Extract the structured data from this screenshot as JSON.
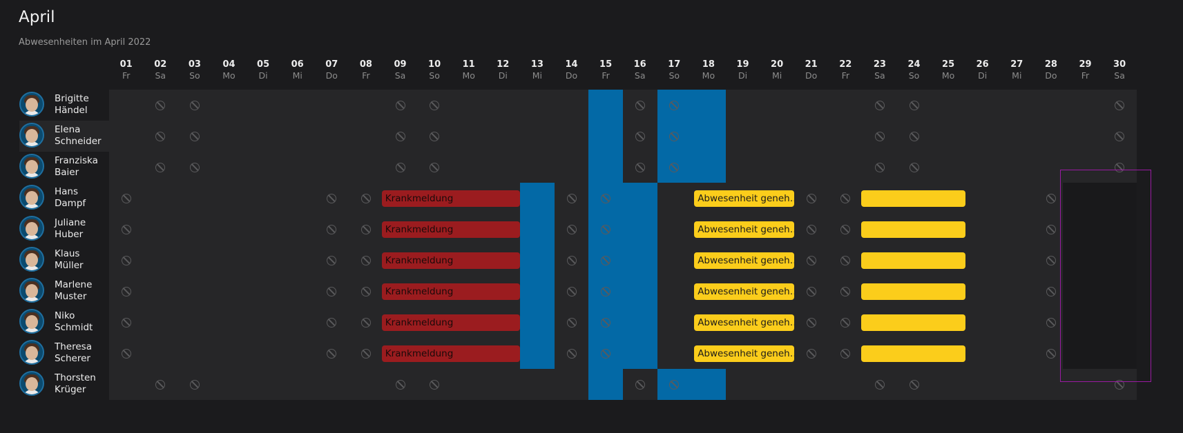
{
  "header": {
    "title": "April",
    "subtitle": "Abwesenheiten im April 2022"
  },
  "days": [
    {
      "num": "01",
      "dow": "Fr"
    },
    {
      "num": "02",
      "dow": "Sa"
    },
    {
      "num": "03",
      "dow": "So"
    },
    {
      "num": "04",
      "dow": "Mo"
    },
    {
      "num": "05",
      "dow": "Di"
    },
    {
      "num": "06",
      "dow": "Mi"
    },
    {
      "num": "07",
      "dow": "Do"
    },
    {
      "num": "08",
      "dow": "Fr"
    },
    {
      "num": "09",
      "dow": "Sa"
    },
    {
      "num": "10",
      "dow": "So"
    },
    {
      "num": "11",
      "dow": "Mo"
    },
    {
      "num": "12",
      "dow": "Di"
    },
    {
      "num": "13",
      "dow": "Mi"
    },
    {
      "num": "14",
      "dow": "Do"
    },
    {
      "num": "15",
      "dow": "Fr"
    },
    {
      "num": "16",
      "dow": "Sa"
    },
    {
      "num": "17",
      "dow": "So"
    },
    {
      "num": "18",
      "dow": "Mo"
    },
    {
      "num": "19",
      "dow": "Di"
    },
    {
      "num": "20",
      "dow": "Mi"
    },
    {
      "num": "21",
      "dow": "Do"
    },
    {
      "num": "22",
      "dow": "Fr"
    },
    {
      "num": "23",
      "dow": "Sa"
    },
    {
      "num": "24",
      "dow": "So"
    },
    {
      "num": "25",
      "dow": "Mo"
    },
    {
      "num": "26",
      "dow": "Di"
    },
    {
      "num": "27",
      "dow": "Mi"
    },
    {
      "num": "28",
      "dow": "Do"
    },
    {
      "num": "29",
      "dow": "Fr"
    },
    {
      "num": "30",
      "dow": "Sa"
    }
  ],
  "users": [
    {
      "first": "Brigitte",
      "last": "Händel",
      "group": "A"
    },
    {
      "first": "Elena",
      "last": "Schneider",
      "group": "A",
      "selected": true
    },
    {
      "first": "Franziska",
      "last": "Baier",
      "group": "A"
    },
    {
      "first": "Hans",
      "last": "Dampf",
      "group": "B"
    },
    {
      "first": "Juliane",
      "last": "Huber",
      "group": "B"
    },
    {
      "first": "Klaus",
      "last": "Müller",
      "group": "B"
    },
    {
      "first": "Marlene",
      "last": "Muster",
      "group": "B"
    },
    {
      "first": "Niko",
      "last": "Schmidt",
      "group": "B"
    },
    {
      "first": "Theresa",
      "last": "Scherer",
      "group": "B"
    },
    {
      "first": "Thorsten",
      "last": "Krüger",
      "group": "A"
    }
  ],
  "off_days": {
    "A": [
      2,
      3,
      9,
      10,
      16,
      17,
      23,
      24,
      30
    ],
    "B": [
      1,
      7,
      8,
      14,
      15,
      21,
      22,
      28
    ]
  },
  "absences": {
    "sick_label": "Krankmeldung",
    "approved_label": "Abwesenheit geneh…",
    "approved_label_2": ""
  },
  "colors": {
    "background": "#1b1b1d",
    "grid": "#262628",
    "holiday": "#0369a6",
    "sick": "#9b1c1f",
    "approved": "#fbcd1b",
    "selection": "#9a1aa3"
  }
}
